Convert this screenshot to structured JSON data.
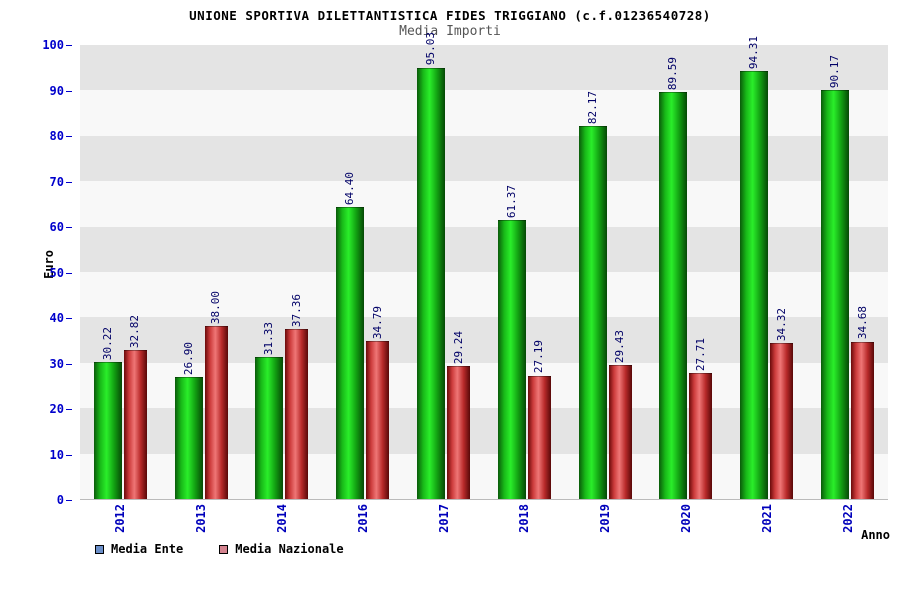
{
  "header": {
    "title": "UNIONE SPORTIVA DILETTANTISTICA FIDES TRIGGIANO (c.f.01236540728)",
    "subtitle": "Media Importi"
  },
  "chart_data": {
    "type": "bar",
    "categories": [
      "2012",
      "2013",
      "2014",
      "2016",
      "2017",
      "2018",
      "2019",
      "2020",
      "2021",
      "2022"
    ],
    "series": [
      {
        "name": "Media Ente",
        "bar_color": "#00cc00",
        "values": [
          30.22,
          26.9,
          31.33,
          64.4,
          95.03,
          61.37,
          82.17,
          89.59,
          94.31,
          90.17
        ]
      },
      {
        "name": "Media Nazionale",
        "bar_color": "#d94545",
        "values": [
          32.82,
          38.0,
          37.36,
          34.79,
          29.24,
          27.19,
          29.43,
          27.71,
          34.32,
          34.68
        ]
      }
    ],
    "title": "Media Importi",
    "xlabel": "Anno",
    "ylabel": "Euro",
    "ylim": [
      0,
      100
    ],
    "yticks": [
      0,
      10,
      20,
      30,
      40,
      50,
      60,
      70,
      80,
      90,
      100
    ],
    "grid": "banded",
    "legend_position": "bottom-left"
  },
  "legend": {
    "swatch_colors": [
      "#6b8fc9",
      "#d4838f"
    ]
  }
}
